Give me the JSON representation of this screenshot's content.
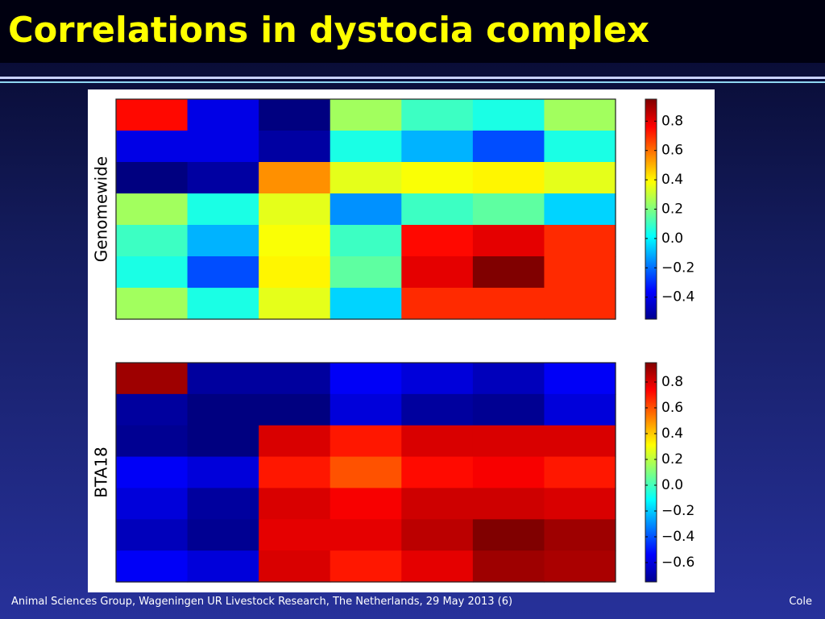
{
  "slide": {
    "title": "Correlations in dystocia complex",
    "footer_left": "Animal Sciences Group, Wageningen UR Livestock Research, The Netherlands, 29 May 2013 (6)",
    "footer_right": "Cole"
  },
  "colors": {
    "title": "#ffff00",
    "background_top": "#06082a",
    "background_bottom": "#27319a",
    "colormap": "jet"
  },
  "chart_data": [
    {
      "type": "heatmap",
      "ylabel": "Genomewide",
      "xlabel": "",
      "title": "",
      "colorbar": {
        "vmin": -0.55,
        "vmax": 0.95,
        "ticks": [
          0.8,
          0.6,
          0.4,
          0.2,
          0.0,
          -0.2,
          -0.4
        ],
        "tick_labels": [
          "0.8",
          "0.6",
          "0.4",
          "0.2",
          "0.0",
          "−0.2",
          "−0.4"
        ]
      },
      "values": [
        [
          0.75,
          -0.4,
          -0.55,
          0.25,
          0.1,
          0.05,
          0.25
        ],
        [
          -0.4,
          -0.4,
          -0.5,
          0.05,
          -0.1,
          -0.25,
          0.05
        ],
        [
          -0.55,
          -0.5,
          0.55,
          0.35,
          0.38,
          0.4,
          0.35
        ],
        [
          0.25,
          0.05,
          0.35,
          -0.15,
          0.1,
          0.15,
          -0.05
        ],
        [
          0.1,
          -0.1,
          0.38,
          0.1,
          0.75,
          0.8,
          0.7
        ],
        [
          0.05,
          -0.25,
          0.4,
          0.15,
          0.8,
          0.95,
          0.7
        ],
        [
          0.25,
          0.05,
          0.35,
          -0.05,
          0.7,
          0.7,
          0.7
        ]
      ]
    },
    {
      "type": "heatmap",
      "ylabel": "BTA18",
      "xlabel": "",
      "title": "",
      "colorbar": {
        "vmin": -0.75,
        "vmax": 0.95,
        "ticks": [
          0.8,
          0.6,
          0.4,
          0.2,
          0.0,
          -0.2,
          -0.4,
          -0.6
        ],
        "tick_labels": [
          "0.8",
          "0.6",
          "0.4",
          "0.2",
          "0.0",
          "−0.2",
          "−0.4",
          "−0.6"
        ]
      },
      "values": [
        [
          0.9,
          -0.7,
          -0.7,
          -0.55,
          -0.6,
          -0.65,
          -0.55
        ],
        [
          -0.7,
          -0.75,
          -0.75,
          -0.6,
          -0.7,
          -0.72,
          -0.6
        ],
        [
          -0.72,
          -0.75,
          0.8,
          0.7,
          0.8,
          0.8,
          0.8
        ],
        [
          -0.55,
          -0.6,
          0.7,
          0.6,
          0.72,
          0.75,
          0.7
        ],
        [
          -0.6,
          -0.7,
          0.8,
          0.75,
          0.82,
          0.82,
          0.8
        ],
        [
          -0.65,
          -0.72,
          0.78,
          0.78,
          0.85,
          0.95,
          0.9
        ],
        [
          -0.55,
          -0.6,
          0.8,
          0.7,
          0.78,
          0.9,
          0.88
        ]
      ]
    }
  ]
}
